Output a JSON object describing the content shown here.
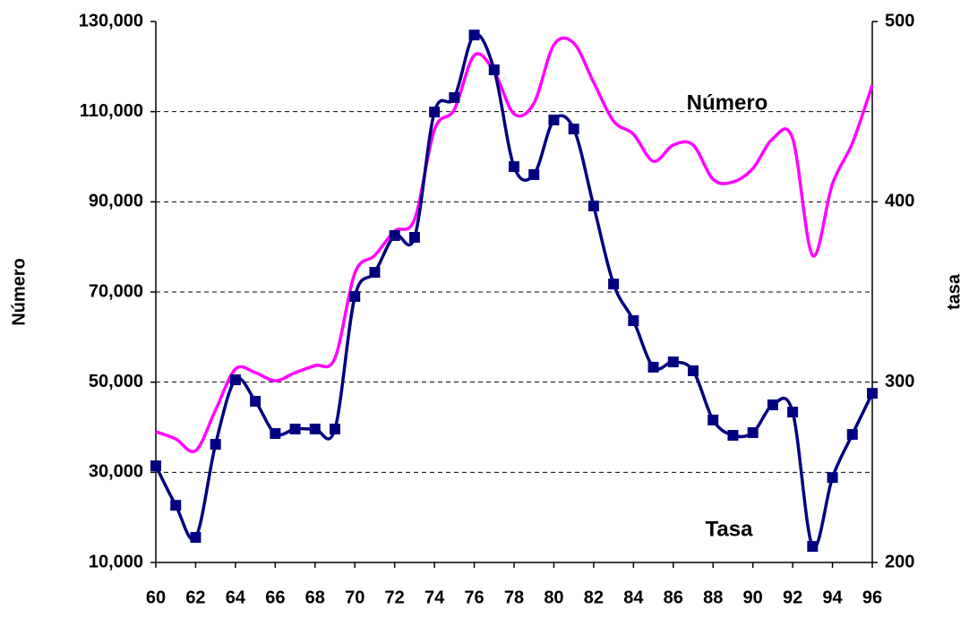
{
  "chart_data": {
    "type": "line",
    "x": [
      60,
      61,
      62,
      63,
      64,
      65,
      66,
      67,
      68,
      69,
      70,
      71,
      72,
      73,
      74,
      75,
      76,
      77,
      78,
      79,
      80,
      81,
      82,
      83,
      84,
      85,
      86,
      87,
      88,
      89,
      90,
      91,
      92,
      93,
      94,
      95,
      96
    ],
    "xlim": [
      60,
      96
    ],
    "xticks": [
      60,
      62,
      64,
      66,
      68,
      70,
      72,
      74,
      76,
      78,
      80,
      82,
      84,
      86,
      88,
      90,
      92,
      94,
      96
    ],
    "ylabel": "Número",
    "y2label": "tasa",
    "ylim": [
      10000,
      130000
    ],
    "yticks": [
      {
        "value": 10000,
        "label": "10,000"
      },
      {
        "value": 30000,
        "label": "30,000"
      },
      {
        "value": 50000,
        "label": "50,000"
      },
      {
        "value": 70000,
        "label": "70,000"
      },
      {
        "value": 90000,
        "label": "90,000"
      },
      {
        "value": 110000,
        "label": "110,000"
      },
      {
        "value": 130000,
        "label": "130,000"
      }
    ],
    "y2lim": [
      200,
      500
    ],
    "y2ticks": [
      200,
      300,
      400,
      500
    ],
    "grid": true,
    "series": [
      {
        "name": "Número",
        "color": "#ff00ff",
        "values": [
          39000,
          37400,
          34800,
          43800,
          52900,
          52100,
          50300,
          52100,
          53700,
          55300,
          74200,
          78100,
          83500,
          86100,
          106000,
          110500,
          122500,
          118900,
          109500,
          111900,
          124800,
          125200,
          116500,
          107900,
          105000,
          99000,
          102600,
          102600,
          95000,
          94400,
          97400,
          104000,
          104000,
          78100,
          94000,
          103000,
          115900
        ]
      },
      {
        "name": "Tasa",
        "color": "#000080",
        "axis": "y2",
        "values": [
          253.6,
          231.7,
          213.9,
          265.5,
          301.3,
          289.4,
          271.5,
          274,
          274,
          274,
          347.5,
          360.9,
          381.3,
          380.3,
          449.8,
          457.8,
          492.5,
          473.2,
          419.5,
          415.1,
          445.4,
          440.4,
          397.7,
          354.4,
          334.1,
          308.3,
          311.2,
          306.3,
          279,
          270.5,
          272,
          287.4,
          283.4,
          208.9,
          247.1,
          271,
          293.8
        ]
      }
    ]
  }
}
